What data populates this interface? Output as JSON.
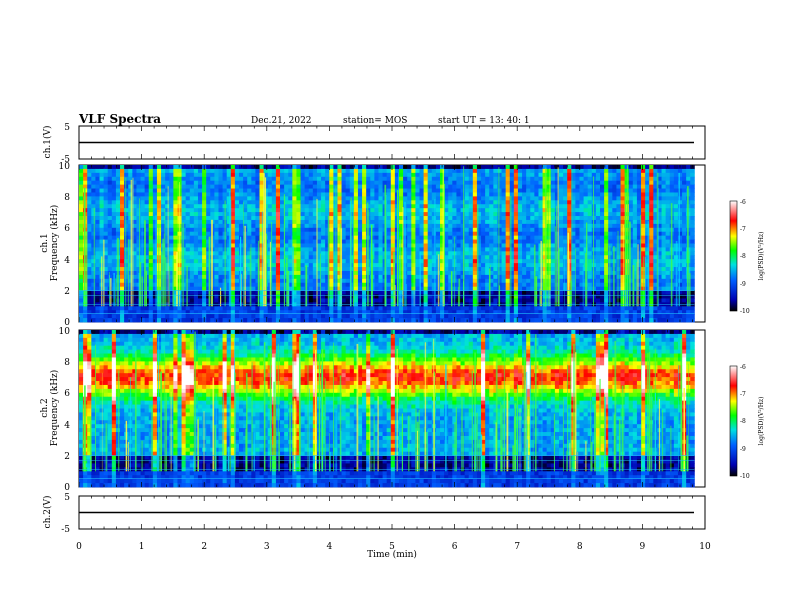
{
  "header": {
    "title": "VLF Spectra",
    "date": "Dec.21, 2022",
    "station": "station= MOS",
    "start": "start  UT  =   13: 40: 1"
  },
  "chart_data": [
    {
      "id": "ch1v",
      "type": "line",
      "ylabel": "ch.1(V)",
      "ylim": [
        -5,
        5
      ],
      "yticks": [
        "5",
        "-5"
      ],
      "series": [
        {
          "x": [
            0,
            9.83
          ],
          "y": [
            0,
            0
          ]
        }
      ]
    },
    {
      "id": "ch1spec",
      "type": "heatmap",
      "ylabel_line1": "ch.1",
      "ylabel_line2": "Frequency (kHz)",
      "ylim": [
        0,
        10
      ],
      "yticks": [
        "0",
        "2",
        "4",
        "6",
        "8",
        "10"
      ],
      "colorbar": {
        "label": "log(PSD)(V²/Hz)",
        "range": [
          -10,
          -6
        ],
        "ticks": [
          "-6",
          "-7",
          "-8",
          "-9",
          "-10"
        ]
      }
    },
    {
      "id": "ch2spec",
      "type": "heatmap",
      "ylabel_line1": "ch.2",
      "ylabel_line2": "Frequency (kHz)",
      "ylim": [
        0,
        10
      ],
      "yticks": [
        "0",
        "2",
        "4",
        "6",
        "8",
        "10"
      ],
      "colorbar": {
        "label": "log(PSD)(V²/Hz)",
        "range": [
          -10,
          -6
        ],
        "ticks": [
          "-6",
          "-7",
          "-8",
          "-9",
          "-10"
        ]
      }
    },
    {
      "id": "ch2v",
      "type": "line",
      "ylabel": "ch.2(V)",
      "ylim": [
        -5,
        5
      ],
      "yticks": [
        "5",
        "-5"
      ],
      "series": [
        {
          "x": [
            0,
            9.83
          ],
          "y": [
            0,
            0
          ]
        }
      ]
    }
  ],
  "xaxis": {
    "label": "Time (min)",
    "xlim": [
      0,
      10
    ],
    "ticks": [
      "0",
      "1",
      "2",
      "3",
      "4",
      "5",
      "6",
      "7",
      "8",
      "9",
      "10"
    ]
  },
  "colors": {
    "background": "#000000",
    "low": "#0000a0",
    "mid": "#00ff00",
    "high": "#ff0000"
  }
}
